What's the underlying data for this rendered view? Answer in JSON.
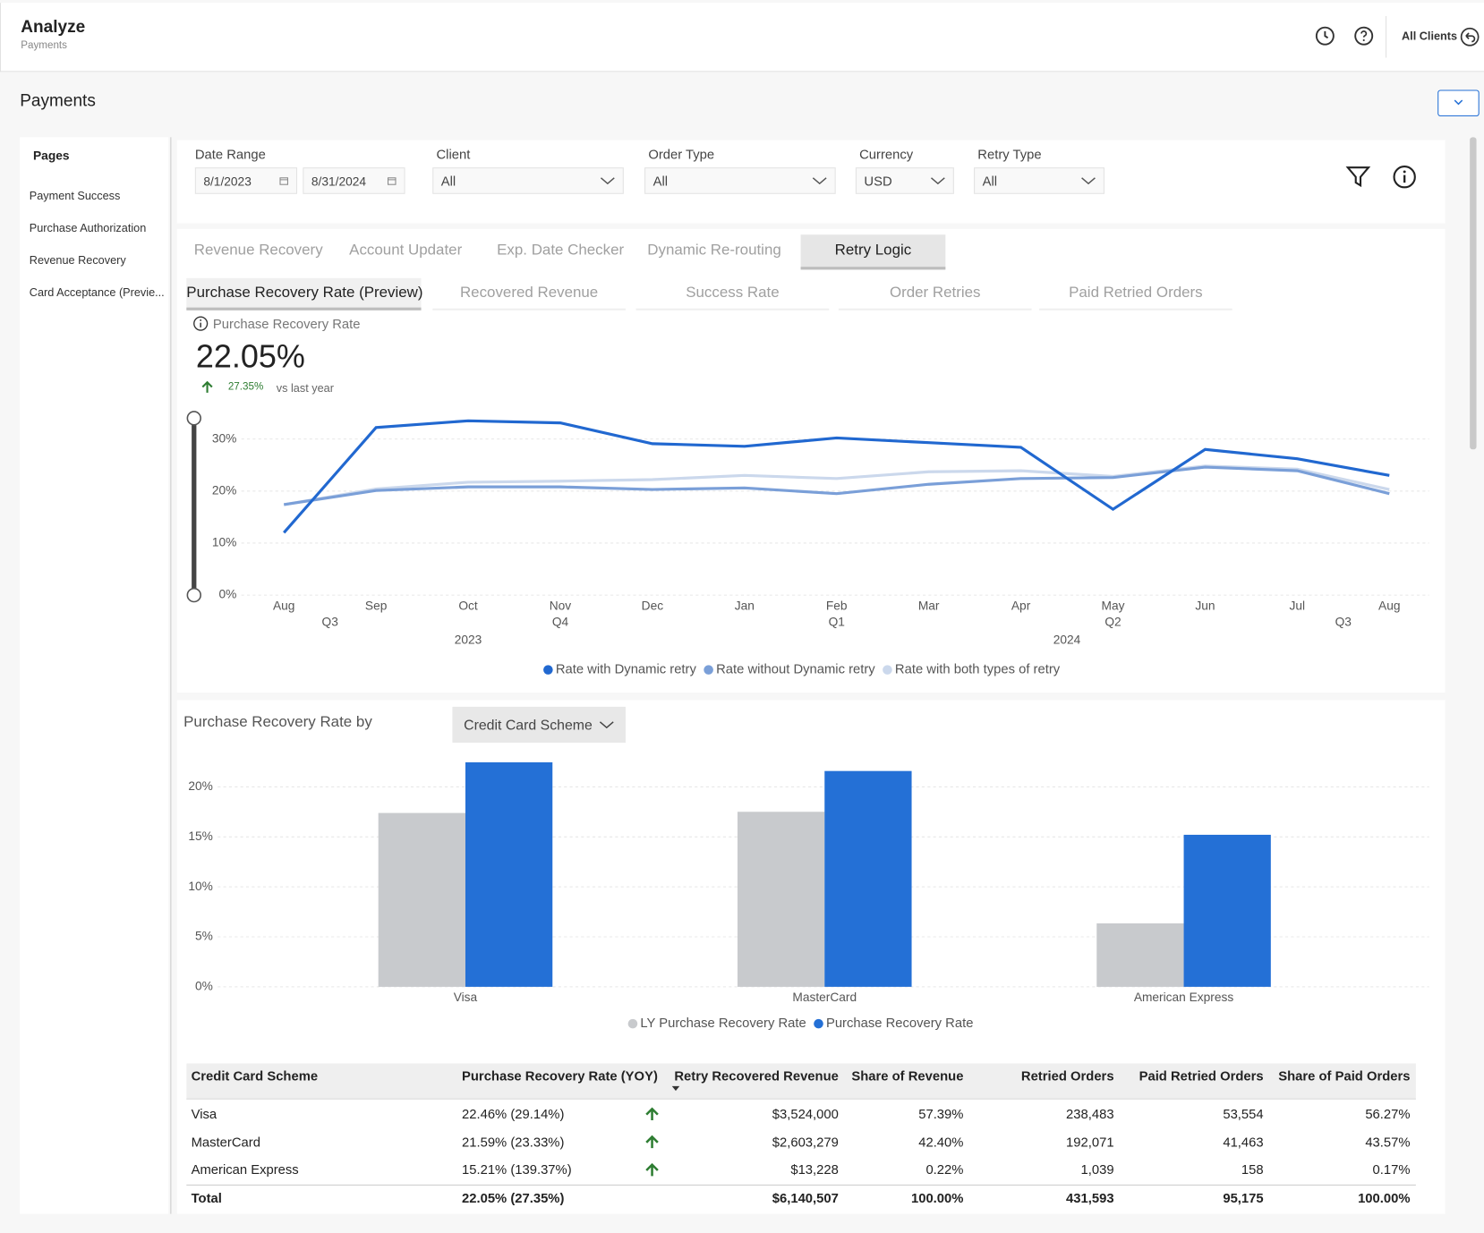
{
  "header": {
    "title": "Analyze",
    "subtitle": "Payments",
    "clients": "All Clients"
  },
  "page_title": "Payments",
  "sidebar": {
    "title": "Pages",
    "items": [
      "Payment Success",
      "Purchase Authorization",
      "Revenue Recovery",
      "Card Acceptance (Previe..."
    ]
  },
  "filters": [
    {
      "label": "Date Range",
      "values": [
        "8/1/2023",
        "8/31/2024"
      ]
    },
    {
      "label": "Client",
      "value": "All"
    },
    {
      "label": "Order Type",
      "value": "All"
    },
    {
      "label": "Currency",
      "value": "USD"
    },
    {
      "label": "Retry Type",
      "value": "All"
    }
  ],
  "tabs": {
    "items": [
      "Revenue Recovery",
      "Account Updater",
      "Exp. Date Checker",
      "Dynamic Re-routing",
      "Retry Logic"
    ],
    "active": 4
  },
  "subtabs": {
    "items": [
      "Purchase Recovery Rate (Preview)",
      "Recovered Revenue",
      "Success Rate",
      "Order Retries",
      "Paid Retried Orders"
    ],
    "active": 0
  },
  "kpi": {
    "label": "Purchase Recovery Rate",
    "value": "22.05%",
    "change": "27.35%",
    "comparison": "vs last year"
  },
  "chart_data": [
    {
      "type": "line",
      "categories": [
        "Aug",
        "Sep",
        "Oct",
        "Nov",
        "Dec",
        "Jan",
        "Feb",
        "Mar",
        "Apr",
        "May",
        "Jun",
        "Jul",
        "Aug"
      ],
      "quarters": [
        "Q3",
        "Q3",
        "Q4",
        "Q4",
        "Q4",
        "Q1",
        "Q1",
        "Q1",
        "Q2",
        "Q2",
        "Q2",
        "Q3",
        "Q3"
      ],
      "years": [
        "2023",
        "2023",
        "2023",
        "2023",
        "2023",
        "2024",
        "2024",
        "2024",
        "2024",
        "2024",
        "2024",
        "2024",
        "2024"
      ],
      "series": [
        {
          "name": "Rate with Dynamic retry",
          "color": "#2168d0",
          "values": [
            12,
            32.2,
            33.5,
            33.1,
            29.1,
            28.6,
            30.2,
            29.3,
            28.4,
            16.5,
            28,
            26.2,
            23
          ]
        },
        {
          "name": "Rate without Dynamic retry",
          "color": "#7a9fd8",
          "values": [
            17.4,
            20.1,
            20.8,
            20.8,
            20.3,
            20.6,
            19.5,
            21.3,
            22.4,
            22.6,
            24.6,
            23.9,
            19.5
          ]
        },
        {
          "name": "Rate with both types of retry",
          "color": "#cbd8ec",
          "values": [
            17.4,
            20.4,
            21.7,
            21.9,
            22.2,
            23,
            22.4,
            23.7,
            23.9,
            22.8,
            24.8,
            24.2,
            20.3
          ]
        }
      ],
      "ylim": [
        0,
        34
      ],
      "yticks": [
        {
          "value": 0,
          "label": "0%"
        },
        {
          "value": 10,
          "label": "10%"
        },
        {
          "value": 20,
          "label": "20%"
        },
        {
          "value": 30,
          "label": "30%"
        }
      ],
      "grid": true,
      "legend": "bottom"
    },
    {
      "type": "bar",
      "title": "Purchase Recovery Rate by",
      "dimension": "Credit Card Scheme",
      "categories": [
        "Visa",
        "MasterCard",
        "American Express"
      ],
      "series": [
        {
          "name": "LY Purchase Recovery Rate",
          "color": "#c8cacd",
          "values": [
            17.39,
            17.51,
            6.35
          ]
        },
        {
          "name": "Purchase Recovery Rate",
          "color": "#2470d6",
          "values": [
            22.46,
            21.59,
            15.21
          ]
        }
      ],
      "ylim": [
        0,
        23
      ],
      "yticks": [
        {
          "value": 0,
          "label": "0%"
        },
        {
          "value": 5,
          "label": "5%"
        },
        {
          "value": 10,
          "label": "10%"
        },
        {
          "value": 15,
          "label": "15%"
        },
        {
          "value": 20,
          "label": "20%"
        }
      ],
      "grid": true,
      "legend": "bottom"
    }
  ],
  "table": {
    "columns": [
      "Credit Card Scheme",
      "Purchase Recovery Rate (YOY)",
      "Retry Recovered Revenue",
      "Share of Revenue",
      "Retried Orders",
      "Paid Retried Orders",
      "Share of Paid Orders"
    ],
    "rows": [
      [
        "Visa",
        "22.46% (29.14%)",
        "$3,524,000",
        "57.39%",
        "238,483",
        "53,554",
        "56.27%"
      ],
      [
        "MasterCard",
        "21.59% (23.33%)",
        "$2,603,279",
        "42.40%",
        "192,071",
        "41,463",
        "43.57%"
      ],
      [
        "American Express",
        "15.21% (139.37%)",
        "$13,228",
        "0.22%",
        "1,039",
        "158",
        "0.17%"
      ]
    ],
    "total": [
      "Total",
      "22.05% (27.35%)",
      "$6,140,507",
      "100.00%",
      "431,593",
      "95,175",
      "100.00%"
    ]
  }
}
